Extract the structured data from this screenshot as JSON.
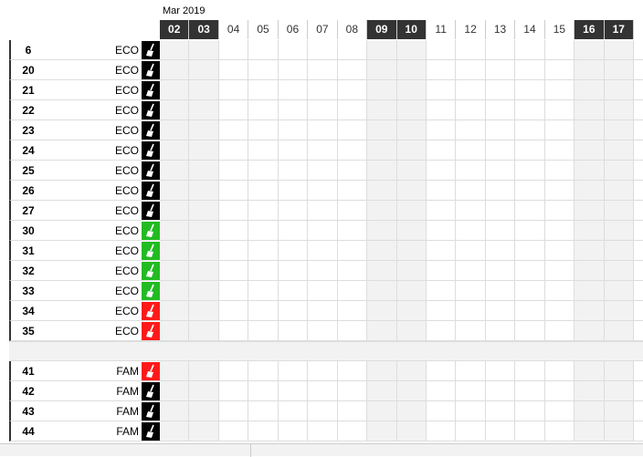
{
  "calendar": {
    "month": "Mar 2019",
    "dates": [
      {
        "label": "02",
        "weekend": true
      },
      {
        "label": "03",
        "weekend": true
      },
      {
        "label": "04",
        "weekend": false
      },
      {
        "label": "05",
        "weekend": false
      },
      {
        "label": "06",
        "weekend": false
      },
      {
        "label": "07",
        "weekend": false
      },
      {
        "label": "08",
        "weekend": false
      },
      {
        "label": "09",
        "weekend": true
      },
      {
        "label": "10",
        "weekend": true
      },
      {
        "label": "11",
        "weekend": false
      },
      {
        "label": "12",
        "weekend": false
      },
      {
        "label": "13",
        "weekend": false
      },
      {
        "label": "14",
        "weekend": false
      },
      {
        "label": "15",
        "weekend": false
      },
      {
        "label": "16",
        "weekend": true
      },
      {
        "label": "17",
        "weekend": true
      }
    ]
  },
  "groups": [
    {
      "rooms": [
        {
          "number": "6",
          "type": "ECO",
          "status_color": "#000000"
        },
        {
          "number": "20",
          "type": "ECO",
          "status_color": "#000000"
        },
        {
          "number": "21",
          "type": "ECO",
          "status_color": "#000000"
        },
        {
          "number": "22",
          "type": "ECO",
          "status_color": "#000000"
        },
        {
          "number": "23",
          "type": "ECO",
          "status_color": "#000000"
        },
        {
          "number": "24",
          "type": "ECO",
          "status_color": "#000000"
        },
        {
          "number": "25",
          "type": "ECO",
          "status_color": "#000000"
        },
        {
          "number": "26",
          "type": "ECO",
          "status_color": "#000000"
        },
        {
          "number": "27",
          "type": "ECO",
          "status_color": "#000000"
        },
        {
          "number": "30",
          "type": "ECO",
          "status_color": "#22bb22"
        },
        {
          "number": "31",
          "type": "ECO",
          "status_color": "#22bb22"
        },
        {
          "number": "32",
          "type": "ECO",
          "status_color": "#22bb22"
        },
        {
          "number": "33",
          "type": "ECO",
          "status_color": "#22bb22"
        },
        {
          "number": "34",
          "type": "ECO",
          "status_color": "#ff1a1a"
        },
        {
          "number": "35",
          "type": "ECO",
          "status_color": "#ff1a1a"
        }
      ]
    },
    {
      "rooms": [
        {
          "number": "41",
          "type": "FAM",
          "status_color": "#ff1a1a"
        },
        {
          "number": "42",
          "type": "FAM",
          "status_color": "#000000"
        },
        {
          "number": "43",
          "type": "FAM",
          "status_color": "#000000"
        },
        {
          "number": "44",
          "type": "FAM",
          "status_color": "#000000"
        }
      ]
    }
  ]
}
